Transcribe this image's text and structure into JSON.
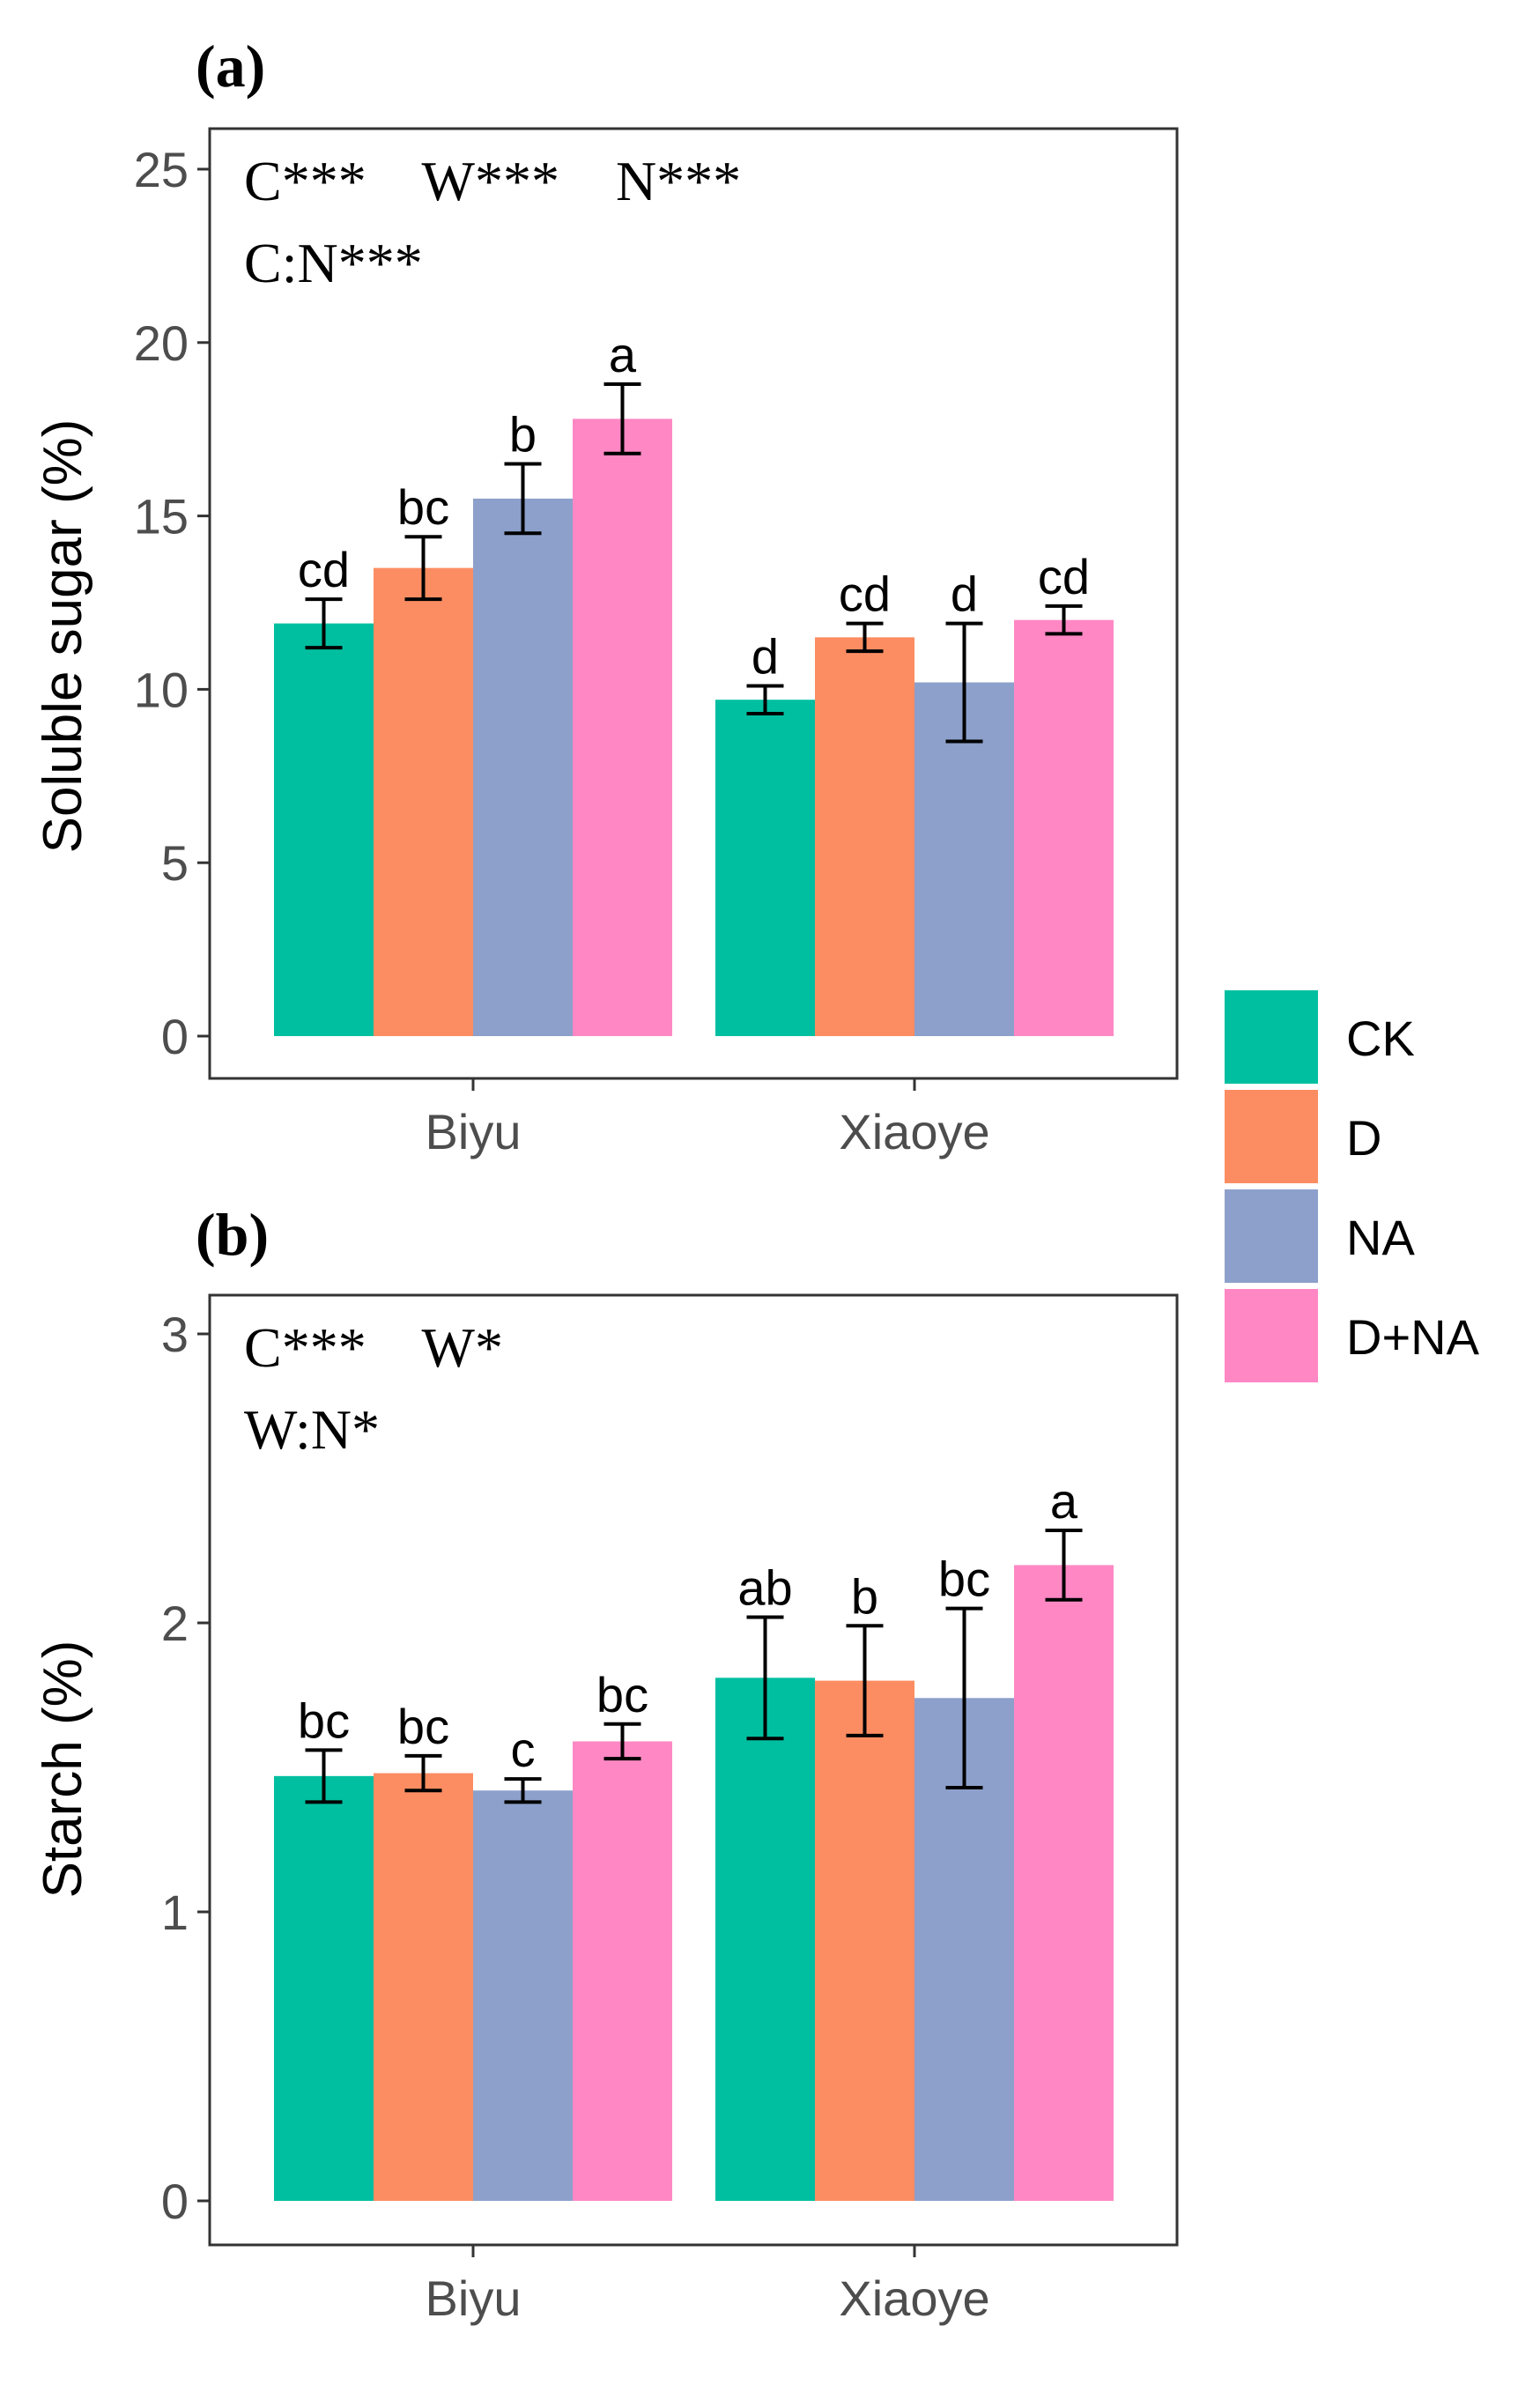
{
  "legend": {
    "items": [
      {
        "label": "CK",
        "color": "#00BFA0"
      },
      {
        "label": "D",
        "color": "#FC8D62"
      },
      {
        "label": "NA",
        "color": "#8DA0CB"
      },
      {
        "label": "D+NA",
        "color": "#FF88C4"
      }
    ]
  },
  "chart_data": [
    {
      "type": "bar",
      "panel_label": "(a)",
      "ylabel": "Soluble sugar (%)",
      "xlabel": "",
      "ylim": [
        0,
        25
      ],
      "yticks": [
        "0",
        "5",
        "10",
        "15",
        "20",
        "25"
      ],
      "categories": [
        "Biyu",
        "Xiaoye"
      ],
      "annotations": [
        "C***    W***    N***",
        "C:N***"
      ],
      "series": [
        {
          "name": "CK",
          "values": [
            11.9,
            9.7
          ],
          "errors": [
            0.7,
            0.4
          ],
          "letters": [
            "cd",
            "d"
          ]
        },
        {
          "name": "D",
          "values": [
            13.5,
            11.5
          ],
          "errors": [
            0.9,
            0.4
          ],
          "letters": [
            "bc",
            "cd"
          ]
        },
        {
          "name": "NA",
          "values": [
            15.5,
            10.2
          ],
          "errors": [
            1.0,
            1.7
          ],
          "letters": [
            "b",
            "d"
          ]
        },
        {
          "name": "D+NA",
          "values": [
            17.8,
            12.0
          ],
          "errors": [
            1.0,
            0.4
          ],
          "letters": [
            "a",
            "cd"
          ]
        }
      ]
    },
    {
      "type": "bar",
      "panel_label": "(b)",
      "ylabel": "Starch (%)",
      "xlabel": "",
      "ylim": [
        0,
        3
      ],
      "yticks": [
        "0",
        "1",
        "2",
        "3"
      ],
      "categories": [
        "Biyu",
        "Xiaoye"
      ],
      "annotations": [
        "C***    W*",
        "W:N*"
      ],
      "series": [
        {
          "name": "CK",
          "values": [
            1.47,
            1.81
          ],
          "errors": [
            0.09,
            0.21
          ],
          "letters": [
            "bc",
            "ab"
          ]
        },
        {
          "name": "D",
          "values": [
            1.48,
            1.8
          ],
          "errors": [
            0.06,
            0.19
          ],
          "letters": [
            "bc",
            "b"
          ]
        },
        {
          "name": "NA",
          "values": [
            1.42,
            1.74
          ],
          "errors": [
            0.04,
            0.31
          ],
          "letters": [
            "c",
            "bc"
          ]
        },
        {
          "name": "D+NA",
          "values": [
            1.59,
            2.2
          ],
          "errors": [
            0.06,
            0.12
          ],
          "letters": [
            "bc",
            "a"
          ]
        }
      ]
    }
  ]
}
